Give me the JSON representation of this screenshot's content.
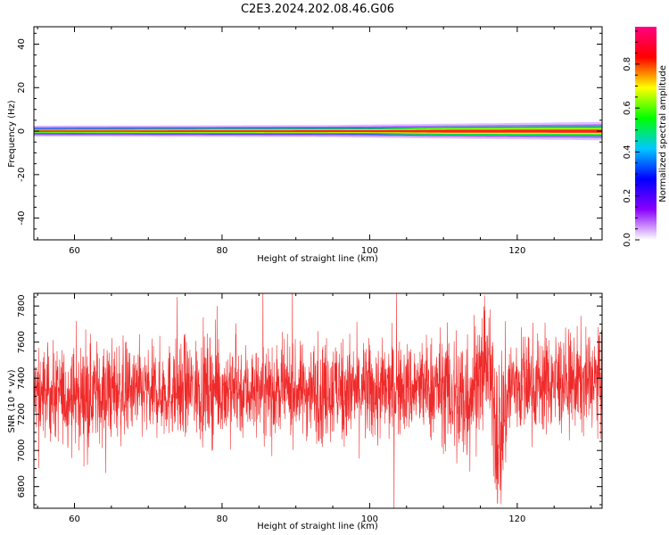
{
  "title": "C2E3.2024.202.08.46.G06",
  "chart_data": [
    {
      "type": "heatmap",
      "xlabel": "Height of straight line (km)",
      "ylabel": "Frequency (Hz)",
      "xlim": [
        54.5,
        131.5
      ],
      "ylim": [
        -50,
        48
      ],
      "xticks": [
        60,
        80,
        100,
        120
      ],
      "yticks": [
        -40,
        -20,
        0,
        20,
        40
      ],
      "band": {
        "center_hz": 0,
        "core_halfwidth_hz": [
          [
            54.5,
            0.6
          ],
          [
            100,
            0.8
          ],
          [
            110,
            1.2
          ],
          [
            131.5,
            1.4
          ]
        ],
        "halo_halfwidth_hz": [
          [
            54.5,
            2.5
          ],
          [
            95,
            2.8
          ],
          [
            105,
            3.2
          ],
          [
            131.5,
            4.2
          ]
        ]
      },
      "colorbar": {
        "label": "Normalized spectral amplitude",
        "range": [
          0.0,
          0.97
        ],
        "ticks": [
          0.0,
          0.2,
          0.4,
          0.6,
          0.8
        ],
        "tick_labels": [
          "0.0",
          "0.2",
          "0.4",
          "0.6",
          "0.8"
        ],
        "colors": [
          "#ffffff",
          "#8a00ff",
          "#0000ff",
          "#00c8ff",
          "#00ff00",
          "#ffff00",
          "#ff0000",
          "#ff0080"
        ]
      }
    },
    {
      "type": "line",
      "xlabel": "Height of straight line (km)",
      "ylabel": "SNR (10 * v/v)",
      "xlim": [
        54.5,
        131.5
      ],
      "ylim": [
        6680,
        7870
      ],
      "xticks": [
        60,
        80,
        100,
        120
      ],
      "yticks": [
        6800,
        7000,
        7200,
        7400,
        7600,
        7800
      ],
      "color": "#ef2a2a",
      "envelope": [
        {
          "x": 55,
          "mean": 7320,
          "amp": 120
        },
        {
          "x": 60,
          "mean": 7300,
          "amp": 135
        },
        {
          "x": 65,
          "mean": 7330,
          "amp": 140
        },
        {
          "x": 70,
          "mean": 7320,
          "amp": 120
        },
        {
          "x": 75,
          "mean": 7340,
          "amp": 135
        },
        {
          "x": 80,
          "mean": 7340,
          "amp": 140
        },
        {
          "x": 85,
          "mean": 7330,
          "amp": 125
        },
        {
          "x": 90,
          "mean": 7330,
          "amp": 120
        },
        {
          "x": 95,
          "mean": 7340,
          "amp": 150
        },
        {
          "x": 100,
          "mean": 7320,
          "amp": 140
        },
        {
          "x": 105,
          "mean": 7340,
          "amp": 130
        },
        {
          "x": 110,
          "mean": 7350,
          "amp": 150
        },
        {
          "x": 112.5,
          "mean": 7260,
          "amp": 230
        },
        {
          "x": 114.5,
          "mean": 7400,
          "amp": 180
        },
        {
          "x": 116,
          "mean": 7470,
          "amp": 140
        },
        {
          "x": 117.5,
          "mean": 7060,
          "amp": 260
        },
        {
          "x": 119,
          "mean": 7360,
          "amp": 150
        },
        {
          "x": 125,
          "mean": 7380,
          "amp": 140
        },
        {
          "x": 131.5,
          "mean": 7380,
          "amp": 140
        }
      ]
    }
  ]
}
